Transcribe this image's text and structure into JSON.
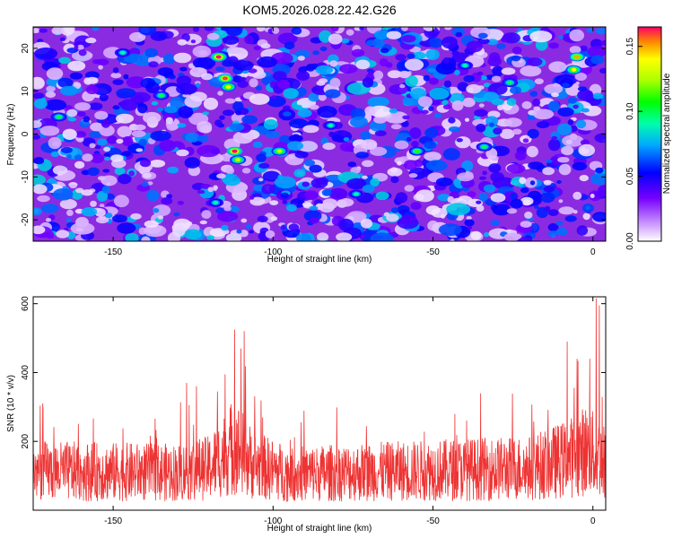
{
  "title": "KOM5.2026.028.22.42.G26",
  "chart_data": [
    {
      "type": "heatmap",
      "xlabel": "Height of straight line (km)",
      "ylabel": "Frequency (Hz)",
      "xlim": [
        -175,
        4
      ],
      "ylim": [
        -25,
        25
      ],
      "xticks": [
        -150,
        -100,
        -50,
        0
      ],
      "yticks": [
        -20,
        -10,
        0,
        10,
        20
      ],
      "colorbar": {
        "label": "Normalized spectral amplitude",
        "range": [
          0,
          0.165
        ],
        "ticks": [
          "0.00",
          "0.05",
          "0.10",
          "0.15"
        ],
        "tick_values": [
          0.0,
          0.05,
          0.1,
          0.15
        ]
      },
      "hotspots": [
        {
          "x": -117,
          "y": 18,
          "value": 0.165
        },
        {
          "x": -115,
          "y": 13,
          "value": 0.16
        },
        {
          "x": -114,
          "y": 11,
          "value": 0.14
        },
        {
          "x": -112,
          "y": -4,
          "value": 0.165
        },
        {
          "x": -111,
          "y": -6,
          "value": 0.13
        },
        {
          "x": -98,
          "y": -4,
          "value": 0.13
        },
        {
          "x": -5,
          "y": 18,
          "value": 0.15
        },
        {
          "x": -6,
          "y": 15,
          "value": 0.14
        },
        {
          "x": -55,
          "y": -4,
          "value": 0.11
        },
        {
          "x": -135,
          "y": 9,
          "value": 0.1
        },
        {
          "x": -26,
          "y": 12,
          "value": 0.1
        },
        {
          "x": -167,
          "y": 4,
          "value": 0.1
        },
        {
          "x": -34,
          "y": -3,
          "value": 0.1
        },
        {
          "x": -82,
          "y": 2,
          "value": 0.09
        },
        {
          "x": -118,
          "y": -16,
          "value": 0.09
        },
        {
          "x": -74,
          "y": -14,
          "value": 0.09
        },
        {
          "x": -147,
          "y": 19,
          "value": 0.09
        },
        {
          "x": -40,
          "y": 16,
          "value": 0.09
        }
      ],
      "background_level": 0.03
    },
    {
      "type": "line",
      "xlabel": "Height of straight line (km)",
      "ylabel": "SNR (10 * v/v)",
      "xlim": [
        -175,
        4
      ],
      "ylim": [
        0,
        620
      ],
      "xticks": [
        -150,
        -100,
        -50,
        0
      ],
      "yticks": [
        200,
        400,
        600
      ],
      "line_color": "#ee3333",
      "baseline": [
        {
          "x": -175,
          "y": 130
        },
        {
          "x": -130,
          "y": 125
        },
        {
          "x": -120,
          "y": 140
        },
        {
          "x": -112,
          "y": 215
        },
        {
          "x": -106,
          "y": 150
        },
        {
          "x": -95,
          "y": 120
        },
        {
          "x": -60,
          "y": 130
        },
        {
          "x": -20,
          "y": 140
        },
        {
          "x": -8,
          "y": 170
        },
        {
          "x": -2,
          "y": 200
        },
        {
          "x": 4,
          "y": 160
        }
      ],
      "peaks": [
        {
          "x": -112,
          "y": 525
        },
        {
          "x": -109,
          "y": 520
        },
        {
          "x": -110,
          "y": 470
        },
        {
          "x": -124,
          "y": 360
        },
        {
          "x": -172,
          "y": 310
        },
        {
          "x": -127,
          "y": 370
        },
        {
          "x": -8,
          "y": 490
        },
        {
          "x": -5,
          "y": 440
        },
        {
          "x": -1,
          "y": 440
        },
        {
          "x": 1,
          "y": 615
        },
        {
          "x": 2,
          "y": 595
        }
      ]
    }
  ]
}
